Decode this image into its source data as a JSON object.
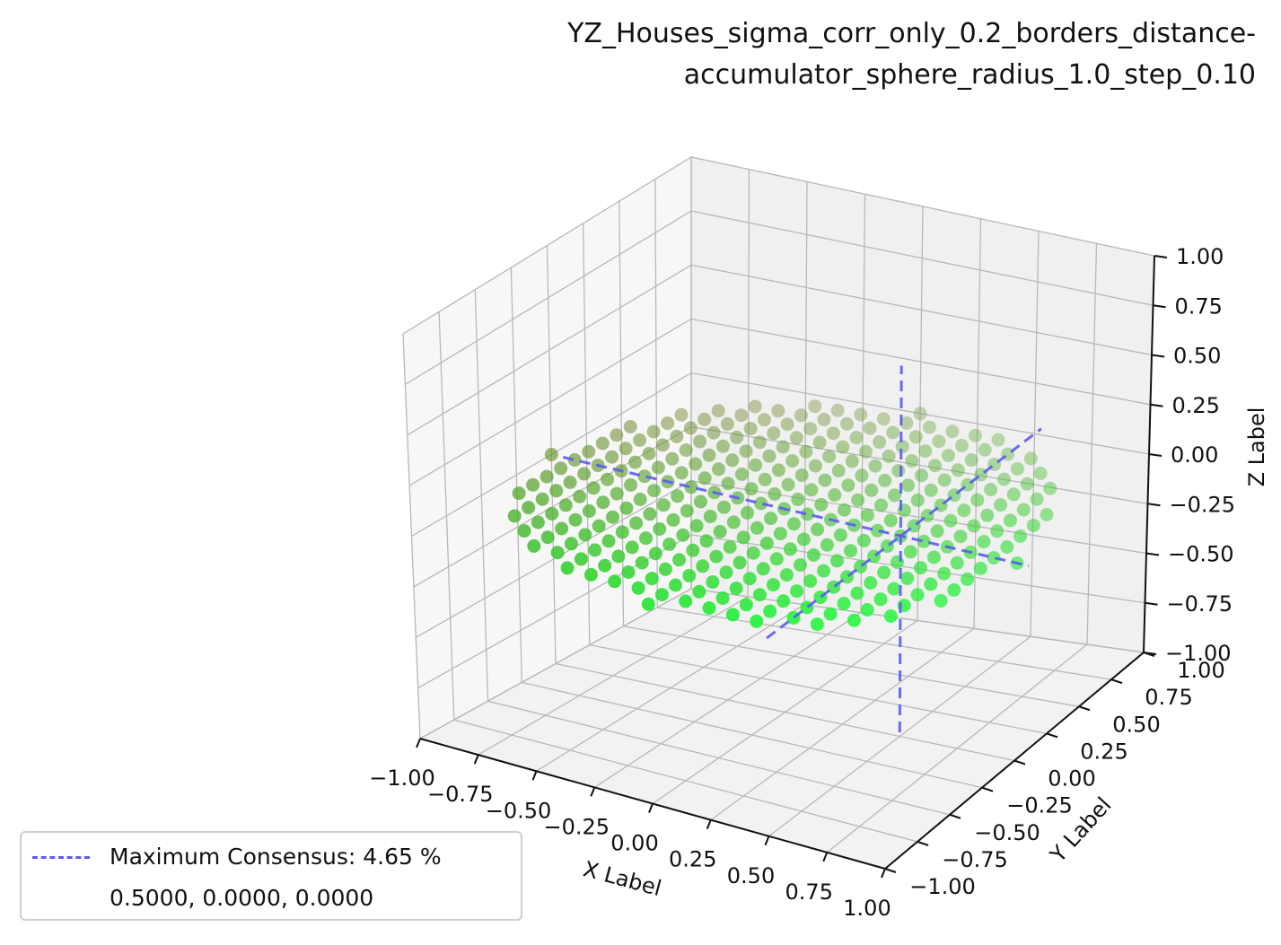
{
  "chart_data": {
    "type": "scatter3d",
    "title_line1": "YZ_Houses_sigma_corr_only_0.2_borders_distance-",
    "title_line2": "accumulator_sphere_radius_1.0_step_0.10",
    "xlabel": "X Label",
    "ylabel": "Y Label",
    "zlabel": "Z Label",
    "xlim": [
      -1.0,
      1.0
    ],
    "ylim": [
      -1.0,
      1.0
    ],
    "zlim": [
      -1.0,
      1.0
    ],
    "x_ticks": [
      "−1.00",
      "−0.75",
      "−0.50",
      "−0.25",
      "0.00",
      "0.25",
      "0.50",
      "0.75",
      "1.00"
    ],
    "y_ticks": [
      "−1.00",
      "−0.75",
      "−0.50",
      "−0.25",
      "0.00",
      "0.25",
      "0.50",
      "0.75",
      "1.00"
    ],
    "z_ticks": [
      "−1.00",
      "−0.75",
      "−0.50",
      "−0.25",
      "0.00",
      "0.25",
      "0.50",
      "0.75",
      "1.00"
    ],
    "grid": true,
    "points": {
      "description_shape": "disc of sample points at z = 0, radius 1.0, step 0.10",
      "z": 0.0,
      "radius": 1.0,
      "step": 0.1,
      "color_low": "#7a7a2a",
      "color_high": "#1aff3c"
    },
    "consensus_lines": {
      "color": "#5b5bf0",
      "style": "dashed",
      "center": [
        0.5,
        0.0,
        0.0
      ]
    },
    "legend": {
      "placement": "lower-left",
      "line1": "Maximum Consensus: 4.65 %",
      "line2": "0.5000, 0.0000, 0.0000"
    }
  }
}
